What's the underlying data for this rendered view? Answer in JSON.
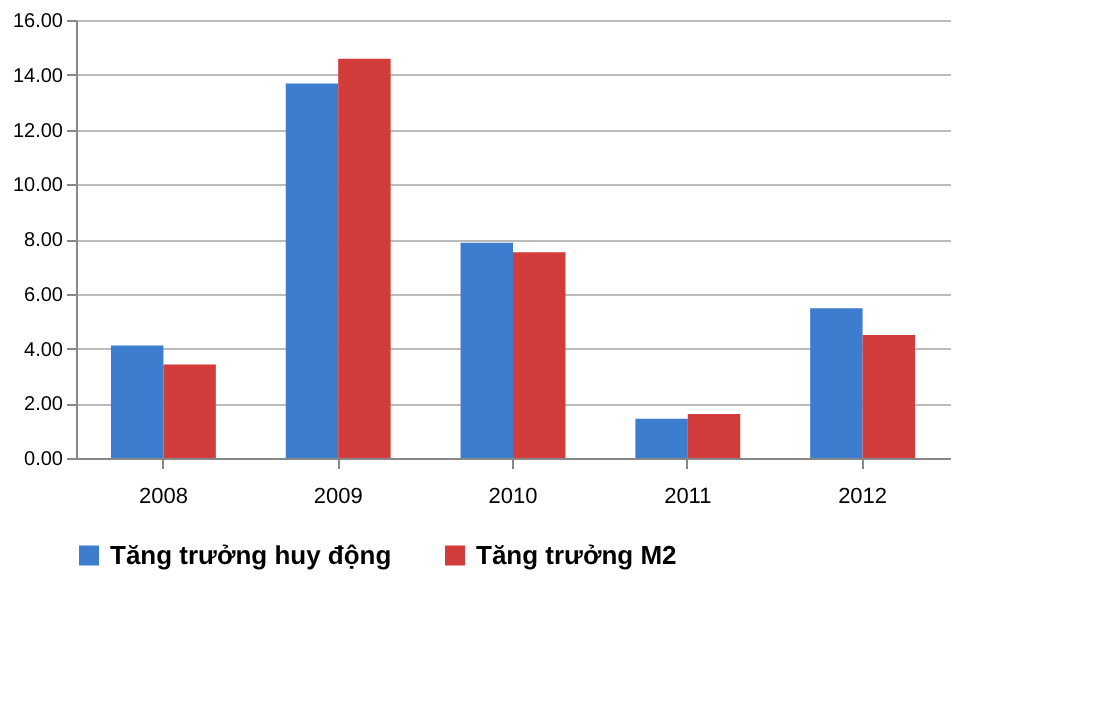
{
  "chart_data": {
    "type": "bar",
    "categories": [
      "2008",
      "2009",
      "2010",
      "2011",
      "2012"
    ],
    "series": [
      {
        "name": "Tăng trưởng huy động",
        "color": "#3d7dd0",
        "values": [
          4.11,
          13.68,
          7.86,
          1.43,
          5.47
        ]
      },
      {
        "name": "Tăng trưởng M2",
        "color": "#d23c3a",
        "values": [
          3.42,
          14.58,
          7.52,
          1.61,
          4.49
        ]
      }
    ],
    "ylim": [
      0,
      16
    ],
    "yticks": [
      {
        "value": 0,
        "label": "0.00"
      },
      {
        "value": 2,
        "label": "2.00"
      },
      {
        "value": 4,
        "label": "4.00"
      },
      {
        "value": 6,
        "label": "6.00"
      },
      {
        "value": 8,
        "label": "8.00"
      },
      {
        "value": 10,
        "label": "10.00"
      },
      {
        "value": 12,
        "label": "12.00"
      },
      {
        "value": 14,
        "label": "14.00"
      },
      {
        "value": 16,
        "label": "16.00"
      }
    ],
    "grid": "y",
    "legend": "bottom"
  }
}
